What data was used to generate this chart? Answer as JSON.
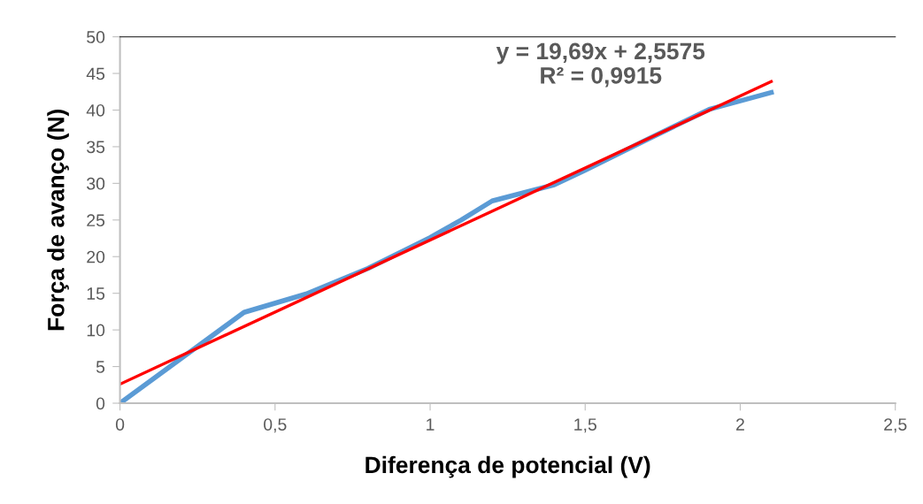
{
  "chart_data": {
    "type": "line",
    "xlabel": "Diferença de potencial (V)",
    "ylabel": "Força de avanço (N)",
    "annotations": [
      "y = 19,69x + 2,5575\nR² = 0,9915"
    ],
    "series": [
      {
        "color": "#5b9bd5",
        "x": [
          0,
          0.4,
          0.6,
          0.8,
          1.0,
          1.1,
          1.2,
          1.4,
          1.5,
          1.7,
          1.9,
          2.1
        ],
        "values": [
          0,
          12.4,
          14.9,
          18.4,
          22.6,
          25.0,
          27.6,
          29.8,
          31.8,
          36.0,
          40.1,
          42.4
        ]
      },
      {
        "color": "#ff0000",
        "x": [
          0,
          2.1
        ],
        "values": [
          2.6,
          43.9
        ]
      }
    ],
    "xlim": [
      0,
      2.5
    ],
    "ylim": [
      0,
      50
    ],
    "xticks": [
      0,
      {
        "value": 0.5,
        "label": "0,5"
      },
      1,
      {
        "value": 1.5,
        "label": "1,5"
      },
      2,
      {
        "value": 2.5,
        "label": "2,5"
      }
    ],
    "yticks": [
      0,
      5,
      10,
      15,
      20,
      25,
      30,
      35,
      40,
      45,
      50
    ],
    "grid": false,
    "legend": false,
    "line_style": "solid",
    "marker": "none"
  }
}
